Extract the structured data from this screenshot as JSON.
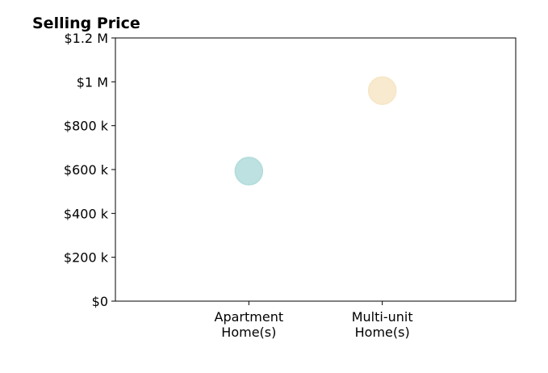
{
  "chart_data": {
    "type": "scatter",
    "title": "Selling Price",
    "xlabel": "",
    "ylabel": "",
    "categories": [
      [
        "Apartment",
        "Home(s)"
      ],
      [
        "Multi-unit",
        "Home(s)"
      ]
    ],
    "values": [
      593000,
      960000
    ],
    "colors": [
      "#b2dcdb",
      "#f7e6c5"
    ],
    "ylim": [
      0,
      1200000
    ],
    "yticks": [
      {
        "value": 0,
        "label": "$0"
      },
      {
        "value": 200000,
        "label": "$200 k"
      },
      {
        "value": 400000,
        "label": "$400 k"
      },
      {
        "value": 600000,
        "label": "$600 k"
      },
      {
        "value": 800000,
        "label": "$800 k"
      },
      {
        "value": 1000000,
        "label": "$1 M"
      },
      {
        "value": 1200000,
        "label": "$1.2 M"
      }
    ],
    "grid": false,
    "legend": "none"
  }
}
